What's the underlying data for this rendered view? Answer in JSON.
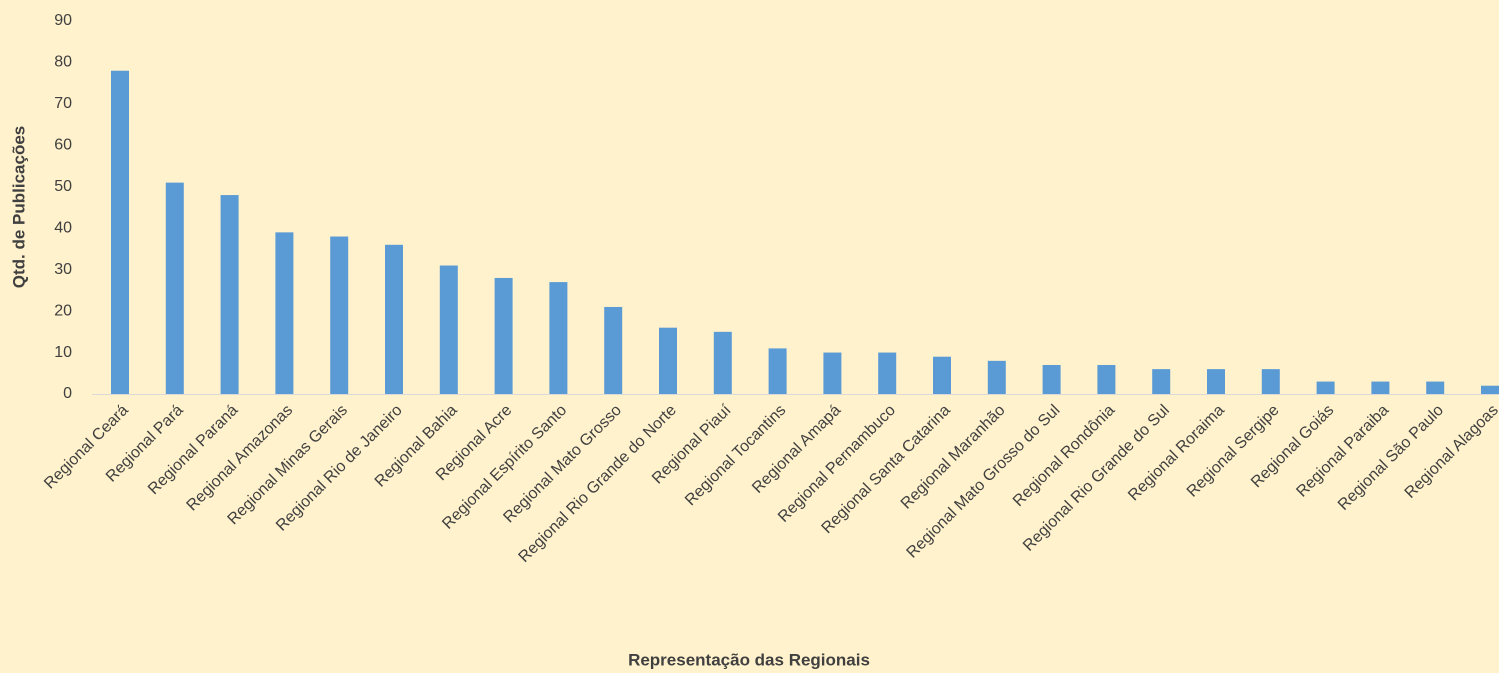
{
  "chart_data": {
    "type": "bar",
    "x_label": "Representação das Regionais",
    "y_label": "Qtd. de Publicações",
    "categories": [
      "Regional Ceará",
      "Regional Pará",
      "Regional Paraná",
      "Regional Amazonas",
      "Regional Minas Gerais",
      "Regional Rio de Janeiro",
      "Regional Bahia",
      "Regional Acre",
      "Regional Espírito Santo",
      "Regional Mato Grosso",
      "Regional Rio Grande do Norte",
      "Regional Piauí",
      "Regional Tocantins",
      "Regional Amapá",
      "Regional Pernambuco",
      "Regional Santa Catarina",
      "Regional Maranhão",
      "Regional Mato Grosso do Sul",
      "Regional Rondônia",
      "Regional Rio Grande do Sul",
      "Regional Roraima",
      "Regional Sergipe",
      "Regional Goiás",
      "Regional Paraiba",
      "Regional São Paulo",
      "Regional Alagoas"
    ],
    "values": [
      78,
      51,
      48,
      39,
      38,
      36,
      31,
      28,
      27,
      21,
      16,
      15,
      11,
      10,
      10,
      9,
      8,
      7,
      7,
      6,
      6,
      6,
      3,
      3,
      3,
      2
    ],
    "color": "#5b9bd5",
    "ylim": [
      0,
      90
    ],
    "yticks": [
      0,
      10,
      20,
      30,
      40,
      50,
      60,
      70,
      80,
      90
    ],
    "grid": false
  }
}
